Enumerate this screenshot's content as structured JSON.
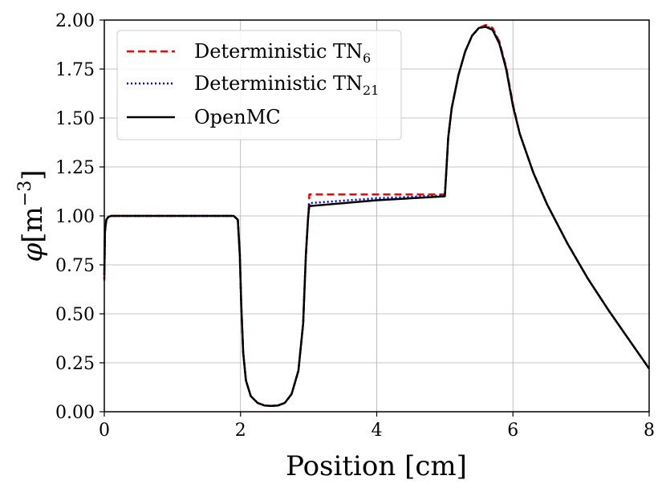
{
  "chart_data": {
    "type": "line",
    "title": "",
    "xlabel": "Position [cm]",
    "ylabel_symbol": "φ",
    "ylabel_unit": "[m",
    "ylabel_exponent": "−3",
    "ylabel_close": "]",
    "xlim": [
      0,
      8
    ],
    "ylim": [
      0,
      2
    ],
    "grid": true,
    "legend_position": "top-left",
    "x_ticks": [
      0,
      2,
      4,
      6,
      8
    ],
    "x_tick_labels": [
      "0",
      "2",
      "4",
      "6",
      "8"
    ],
    "y_ticks": [
      0,
      0.25,
      0.5,
      0.75,
      1.0,
      1.25,
      1.5,
      1.75,
      2.0
    ],
    "y_tick_labels": [
      "0.00",
      "0.25",
      "0.50",
      "0.75",
      "1.00",
      "1.25",
      "1.50",
      "1.75",
      "2.00"
    ],
    "series": [
      {
        "name": "Deterministic TN",
        "subscript": "6",
        "color": "#ff0000",
        "style": "dashed",
        "x": [
          0,
          0.01,
          0.03,
          0.06,
          0.1,
          0.2,
          1.9,
          1.96,
          1.99,
          2.01,
          2.04,
          2.08,
          2.15,
          2.25,
          2.35,
          2.45,
          2.55,
          2.65,
          2.75,
          2.85,
          2.92,
          2.96,
          2.99,
          3.0,
          3.01,
          4.0,
          5.0,
          5.02,
          5.05,
          5.1,
          5.2,
          5.3,
          5.4,
          5.5,
          5.6,
          5.7,
          5.8,
          5.9,
          6.0,
          6.1,
          6.3,
          6.5,
          6.8,
          7.1,
          7.4,
          7.7,
          8.0
        ],
        "y": [
          0.67,
          0.92,
          0.98,
          0.995,
          1.0,
          1.0,
          1.0,
          0.98,
          0.8,
          0.55,
          0.3,
          0.16,
          0.08,
          0.045,
          0.032,
          0.03,
          0.032,
          0.045,
          0.09,
          0.21,
          0.45,
          0.8,
          0.98,
          1.03,
          1.11,
          1.11,
          1.11,
          1.22,
          1.4,
          1.55,
          1.72,
          1.84,
          1.92,
          1.96,
          1.975,
          1.96,
          1.89,
          1.76,
          1.57,
          1.42,
          1.22,
          1.06,
          0.86,
          0.68,
          0.52,
          0.37,
          0.22
        ]
      },
      {
        "name": "Deterministic TN",
        "subscript": "21",
        "color": "#0000cc",
        "style": "dotted",
        "x": [
          0,
          0.01,
          0.03,
          0.06,
          0.1,
          0.2,
          1.9,
          1.96,
          1.99,
          2.01,
          2.04,
          2.08,
          2.15,
          2.25,
          2.35,
          2.45,
          2.55,
          2.65,
          2.75,
          2.85,
          2.92,
          2.96,
          2.99,
          3.0,
          3.01,
          4.0,
          5.0,
          5.02,
          5.05,
          5.1,
          5.2,
          5.3,
          5.4,
          5.5,
          5.6,
          5.7,
          5.8,
          5.9,
          6.0,
          6.1,
          6.3,
          6.5,
          6.8,
          7.1,
          7.4,
          7.7,
          8.0
        ],
        "y": [
          0.68,
          0.92,
          0.98,
          0.995,
          1.0,
          1.0,
          1.0,
          0.98,
          0.8,
          0.55,
          0.3,
          0.16,
          0.08,
          0.045,
          0.032,
          0.03,
          0.032,
          0.045,
          0.09,
          0.21,
          0.45,
          0.8,
          0.98,
          1.02,
          1.065,
          1.09,
          1.105,
          1.22,
          1.4,
          1.55,
          1.72,
          1.84,
          1.92,
          1.96,
          1.97,
          1.955,
          1.885,
          1.755,
          1.565,
          1.42,
          1.22,
          1.06,
          0.86,
          0.68,
          0.52,
          0.37,
          0.22
        ]
      },
      {
        "name": "OpenMC",
        "subscript": "",
        "color": "#000000",
        "style": "solid",
        "x": [
          0,
          0.01,
          0.03,
          0.06,
          0.1,
          0.2,
          1.9,
          1.96,
          1.99,
          2.01,
          2.04,
          2.08,
          2.15,
          2.25,
          2.35,
          2.45,
          2.55,
          2.65,
          2.75,
          2.85,
          2.92,
          2.96,
          2.99,
          3.0,
          3.01,
          4.0,
          5.0,
          5.02,
          5.05,
          5.1,
          5.2,
          5.3,
          5.4,
          5.5,
          5.6,
          5.7,
          5.8,
          5.9,
          6.0,
          6.1,
          6.3,
          6.5,
          6.8,
          7.1,
          7.4,
          7.7,
          8.0
        ],
        "y": [
          0.7,
          0.92,
          0.98,
          0.995,
          1.0,
          1.0,
          1.0,
          0.98,
          0.8,
          0.55,
          0.3,
          0.16,
          0.08,
          0.045,
          0.032,
          0.03,
          0.032,
          0.045,
          0.09,
          0.21,
          0.45,
          0.8,
          0.98,
          1.02,
          1.05,
          1.08,
          1.1,
          1.22,
          1.4,
          1.55,
          1.72,
          1.84,
          1.92,
          1.96,
          1.965,
          1.95,
          1.88,
          1.75,
          1.56,
          1.42,
          1.22,
          1.06,
          0.86,
          0.68,
          0.52,
          0.37,
          0.22
        ]
      }
    ]
  }
}
